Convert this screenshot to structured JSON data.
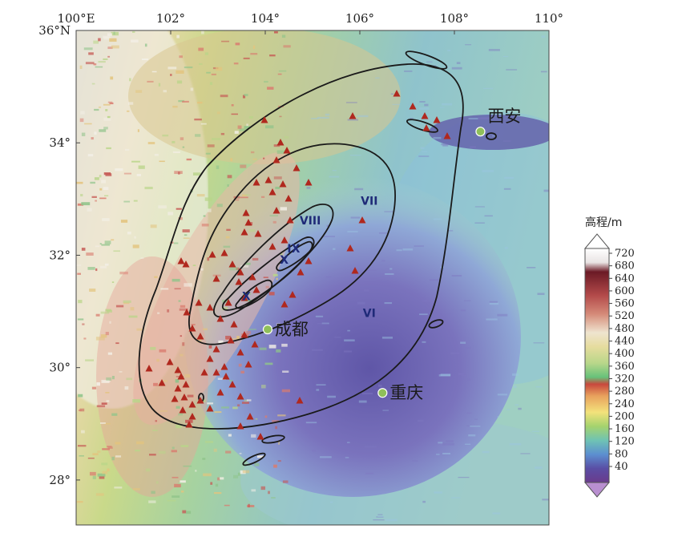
{
  "map": {
    "lon_range": [
      100,
      110
    ],
    "lat_range": [
      27.2,
      36
    ],
    "x_ticks": [
      {
        "value": 100,
        "label": "100°E"
      },
      {
        "value": 102,
        "label": "102°"
      },
      {
        "value": 104,
        "label": "104°"
      },
      {
        "value": 106,
        "label": "106°"
      },
      {
        "value": 108,
        "label": "108°"
      },
      {
        "value": 110,
        "label": "110°"
      }
    ],
    "y_ticks": [
      {
        "value": 36,
        "label": "36°N"
      },
      {
        "value": 34,
        "label": "34°"
      },
      {
        "value": 32,
        "label": "32°"
      },
      {
        "value": 30,
        "label": "30°"
      },
      {
        "value": 28,
        "label": "28°"
      }
    ],
    "cities": [
      {
        "name": "西安",
        "lon": 108.55,
        "lat": 34.2
      },
      {
        "name": "成都",
        "lon": 104.05,
        "lat": 30.68
      },
      {
        "name": "重庆",
        "lon": 106.48,
        "lat": 29.55
      }
    ],
    "intensity_labels": [
      {
        "text": "VI",
        "lon": 106.2,
        "lat": 30.9
      },
      {
        "text": "VII",
        "lon": 106.2,
        "lat": 32.9
      },
      {
        "text": "VIII",
        "lon": 104.95,
        "lat": 32.55
      },
      {
        "text": "IX",
        "lon": 104.6,
        "lat": 32.05
      },
      {
        "text": "X",
        "lon": 104.4,
        "lat": 31.85
      },
      {
        "text": "X",
        "lon": 103.6,
        "lat": 31.2
      }
    ],
    "marker_color": "#b0281e",
    "city_marker_color": "#8fbf5a",
    "contour_color": "#1a1a1a",
    "colors": {
      "low": "#6f68b8",
      "basin": "#8d8fc8",
      "hills": "#7ab9d8",
      "mid": "#9ccf8a",
      "high": "#e7d18e",
      "peak": "#d99a8f",
      "snow": "#f4f2ee"
    }
  },
  "colorbar": {
    "title": "高程/m",
    "labels": [
      "720",
      "680",
      "640",
      "600",
      "560",
      "520",
      "480",
      "440",
      "400",
      "360",
      "320",
      "280",
      "240",
      "200",
      "160",
      "120",
      "80",
      "40"
    ]
  }
}
